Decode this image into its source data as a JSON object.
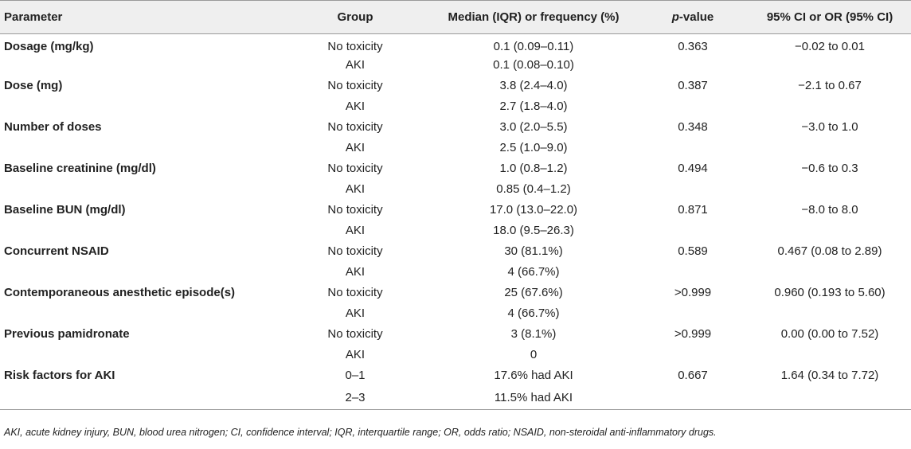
{
  "header": {
    "parameter": "Parameter",
    "group": "Group",
    "median": "Median (IQR) or frequency (%)",
    "pvalue_p": "p",
    "pvalue_rest": "-value",
    "ci": "95% CI or OR (95% CI)"
  },
  "rows": [
    {
      "parameter": "Dosage (mg/kg)",
      "group": "No toxicity",
      "median": "0.1 (0.09–0.11)",
      "p": "0.363",
      "ci": "−0.02 to 0.01"
    },
    {
      "parameter": "",
      "group": "AKI",
      "median": "0.1 (0.08–0.10)",
      "p": "",
      "ci": ""
    },
    {
      "parameter": "Dose (mg)",
      "group": "No toxicity",
      "median": "3.8 (2.4–4.0)",
      "p": "0.387",
      "ci": "−2.1 to 0.67"
    },
    {
      "parameter": "",
      "group": "AKI",
      "median": "2.7 (1.8–4.0)",
      "p": "",
      "ci": ""
    },
    {
      "parameter": "Number of doses",
      "group": "No toxicity",
      "median": "3.0 (2.0–5.5)",
      "p": "0.348",
      "ci": "−3.0 to 1.0"
    },
    {
      "parameter": "",
      "group": "AKI",
      "median": "2.5 (1.0–9.0)",
      "p": "",
      "ci": ""
    },
    {
      "parameter": "Baseline creatinine (mg/dl)",
      "group": "No toxicity",
      "median": "1.0 (0.8–1.2)",
      "p": "0.494",
      "ci": "−0.6 to 0.3"
    },
    {
      "parameter": "",
      "group": "AKI",
      "median": "0.85 (0.4–1.2)",
      "p": "",
      "ci": ""
    },
    {
      "parameter": "Baseline BUN (mg/dl)",
      "group": "No toxicity",
      "median": "17.0 (13.0–22.0)",
      "p": "0.871",
      "ci": "−8.0 to 8.0"
    },
    {
      "parameter": "",
      "group": "AKI",
      "median": "18.0 (9.5–26.3)",
      "p": "",
      "ci": ""
    },
    {
      "parameter": "Concurrent NSAID",
      "group": "No toxicity",
      "median": "30 (81.1%)",
      "p": "0.589",
      "ci": "0.467 (0.08 to 2.89)"
    },
    {
      "parameter": "",
      "group": "AKI",
      "median": "4 (66.7%)",
      "p": "",
      "ci": ""
    },
    {
      "parameter": "Contemporaneous anesthetic episode(s)",
      "group": "No toxicity",
      "median": "25 (67.6%)",
      "p": ">0.999",
      "ci": "0.960 (0.193 to 5.60)"
    },
    {
      "parameter": "",
      "group": "AKI",
      "median": "4 (66.7%)",
      "p": "",
      "ci": ""
    },
    {
      "parameter": "Previous pamidronate",
      "group": "No toxicity",
      "median": "3 (8.1%)",
      "p": ">0.999",
      "ci": "0.00 (0.00 to 7.52)"
    },
    {
      "parameter": "",
      "group": "AKI",
      "median": "0",
      "p": "",
      "ci": ""
    },
    {
      "parameter": "Risk factors for AKI",
      "group": "0–1",
      "median": "17.6% had AKI",
      "p": "0.667",
      "ci": "1.64 (0.34 to 7.72)"
    },
    {
      "parameter": "",
      "group": "2–3",
      "median": "11.5% had AKI",
      "p": "",
      "ci": ""
    }
  ],
  "footnote": "AKI, acute kidney injury, BUN, blood urea nitrogen; CI, confidence interval; IQR, interquartile range; OR, odds ratio; NSAID, non-steroidal anti-inflammatory drugs."
}
